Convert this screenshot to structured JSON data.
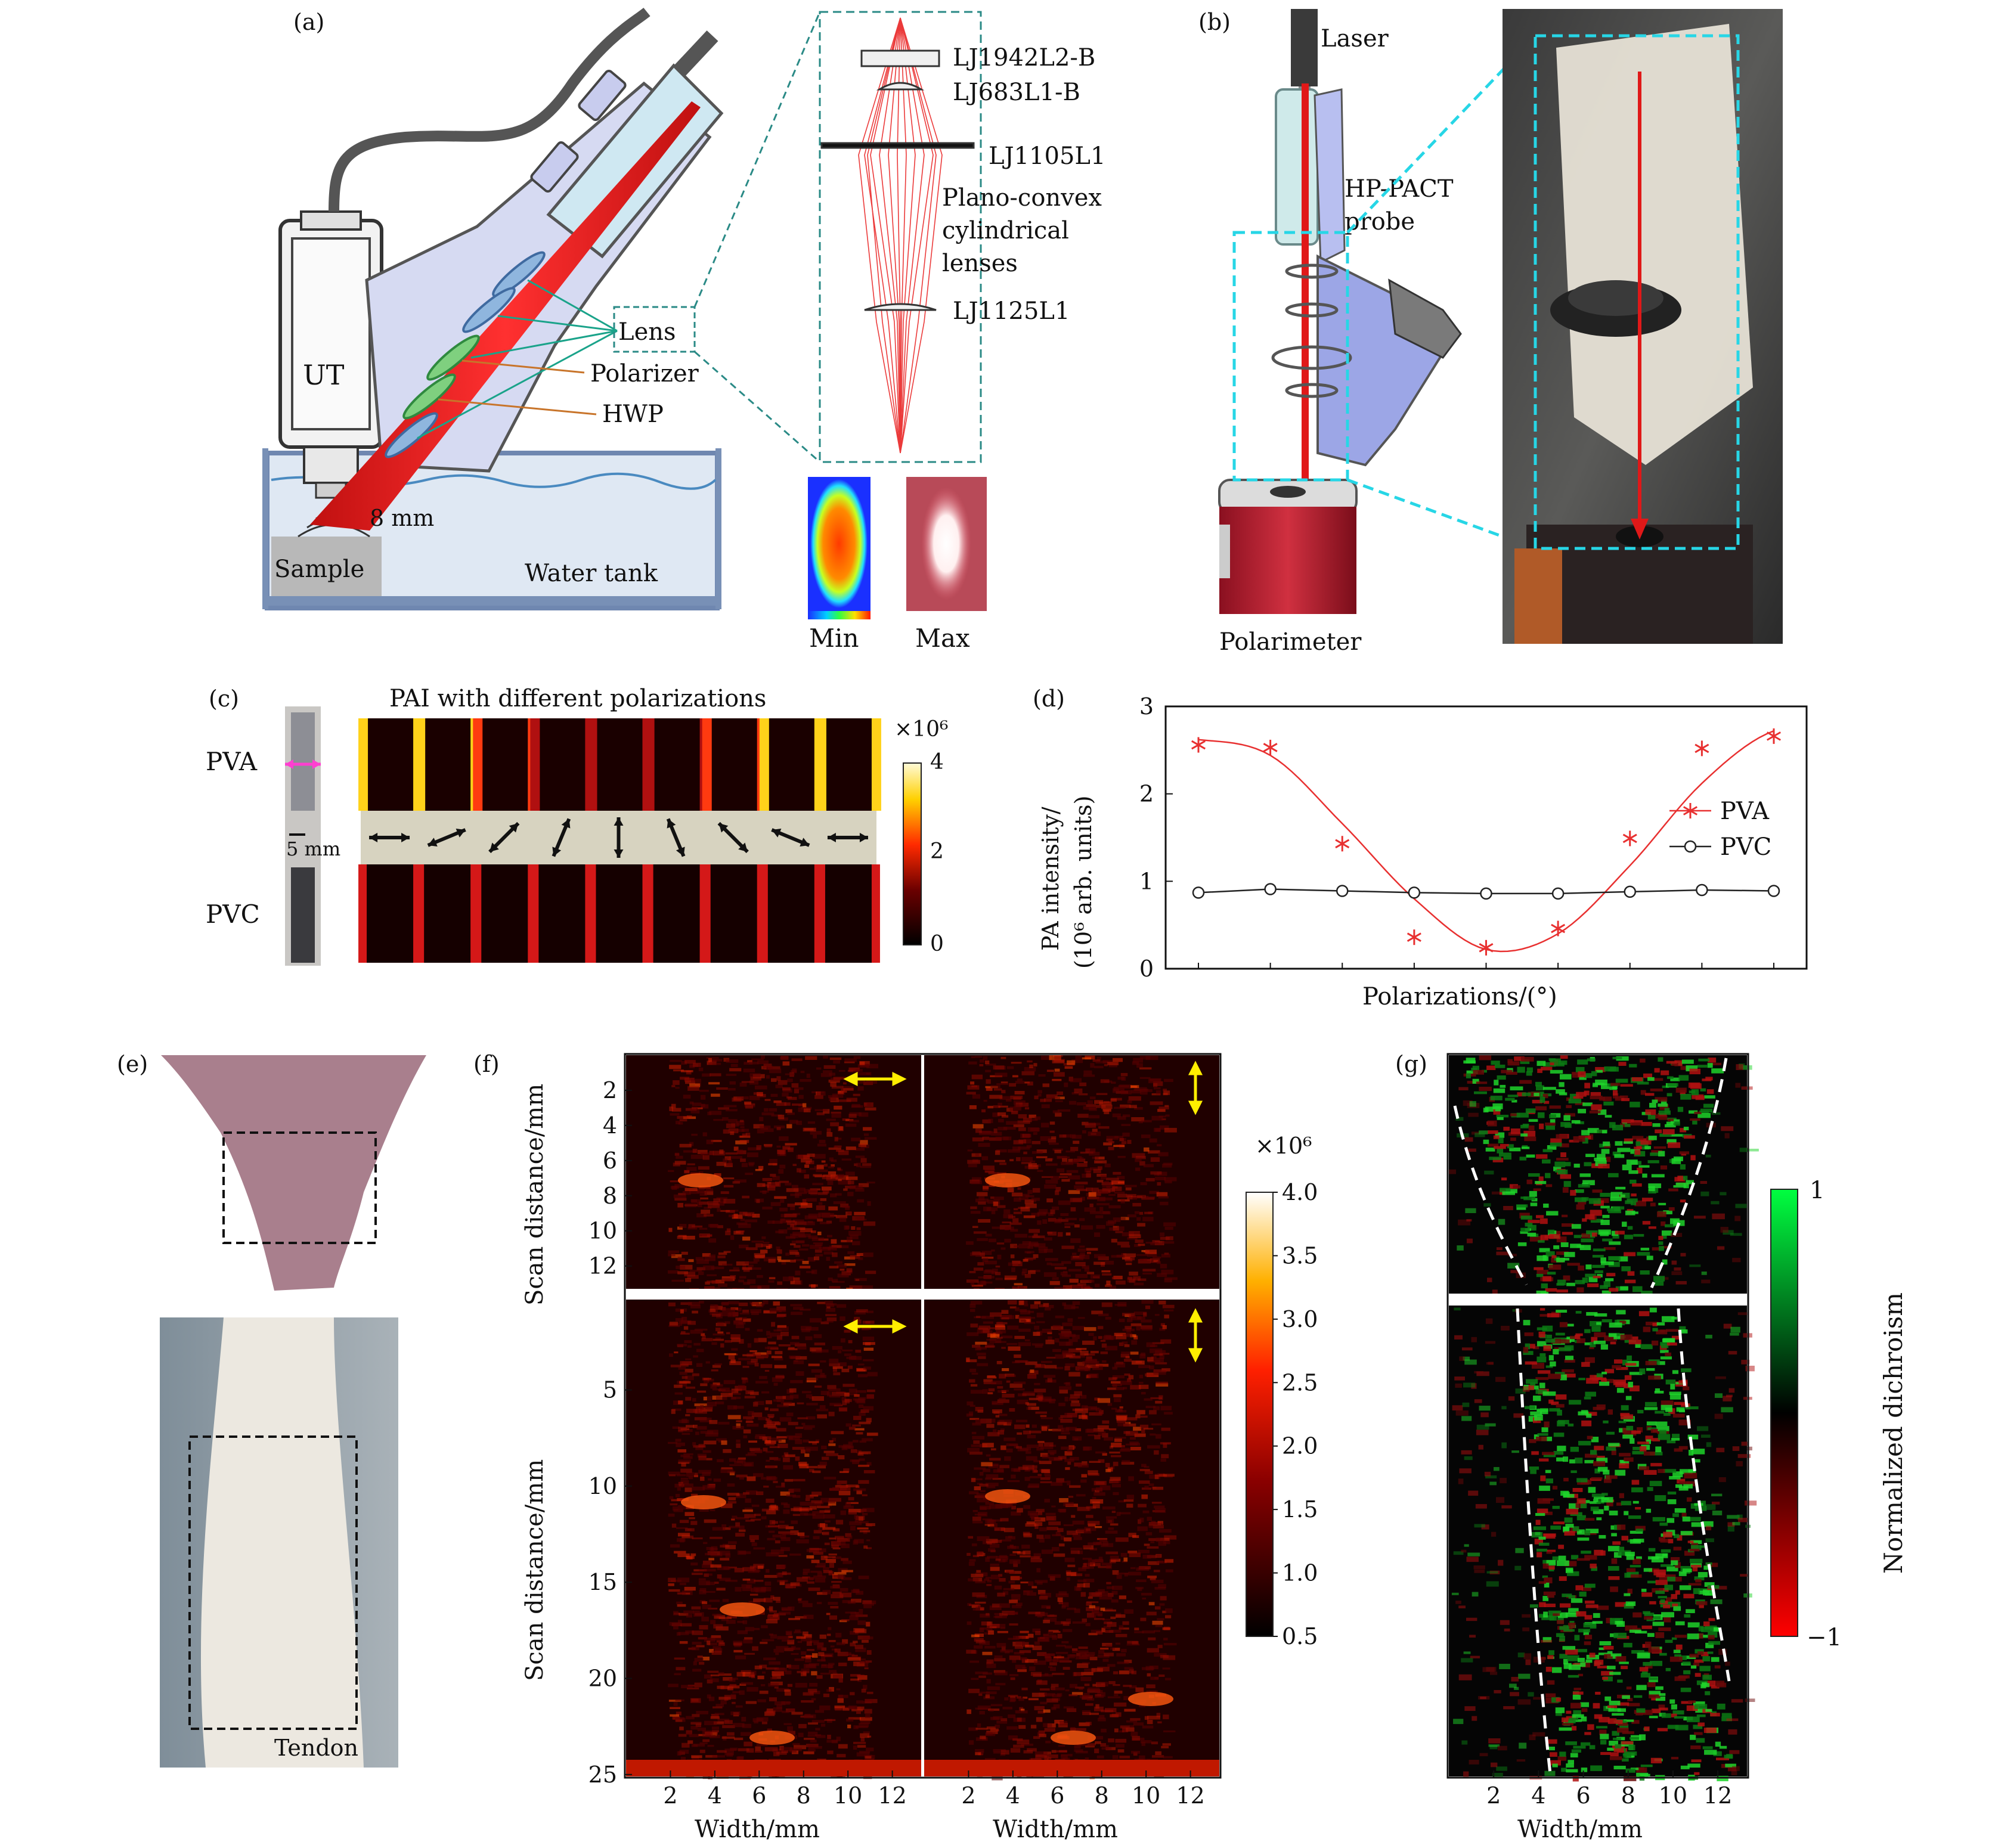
{
  "panel_letters": [
    "(a)",
    "(b)",
    "(c)",
    "(d)",
    "(e)",
    "(f)",
    "(g)"
  ],
  "panel_a": {
    "lens_labels": [
      "LJ1942L2-B",
      "LJ683L1-B",
      "LJ1105L1",
      "Plano-convex",
      "cylindrical",
      "lenses",
      "LJ1125L1"
    ],
    "component_labels": {
      "ut": "UT",
      "lens": "Lens",
      "polarizer": "Polarizer",
      "hwp": "HWP",
      "distance": "8 mm",
      "sample": "Sample",
      "water_tank": "Water tank"
    },
    "beam_profile": {
      "min_label": "Min",
      "max_label": "Max"
    }
  },
  "panel_b": {
    "laser": "Laser",
    "probe_line1": "HP-PACT",
    "probe_line2": "probe",
    "polarimeter": "Polarimeter"
  },
  "panel_c": {
    "title": "PAI with different polarizations",
    "sample_labels": [
      "PVA",
      "PVC"
    ],
    "scale_bar": "5 mm",
    "colorbar": {
      "multiplier": "×10⁶",
      "ticks": [
        "4",
        "2",
        "0"
      ]
    },
    "polarization_angles_deg": [
      0,
      22.5,
      45,
      67.5,
      90,
      112.5,
      135,
      157.5,
      180
    ]
  },
  "panel_d": {
    "chart_data": {
      "type": "line",
      "title": "",
      "xlabel": "Polarizations/(°)",
      "ylabel_line1": "PA intensity/",
      "ylabel_line2": "(10⁶ arb. units)",
      "ylim": [
        0,
        3
      ],
      "yticks": [
        "0",
        "1",
        "2",
        "3"
      ],
      "x": [
        1,
        2,
        3,
        4,
        5,
        6,
        7,
        8,
        9
      ],
      "series": [
        {
          "name": "PVA",
          "marker": "asterisk",
          "color": "#e83030",
          "values": [
            2.56,
            2.53,
            1.43,
            0.36,
            0.24,
            0.46,
            1.49,
            2.52,
            2.66
          ],
          "fit": [
            2.62,
            2.44,
            1.66,
            0.8,
            0.22,
            0.4,
            1.18,
            2.12,
            2.72
          ]
        },
        {
          "name": "PVC",
          "marker": "circle",
          "color": "#222222",
          "values": [
            0.87,
            0.91,
            0.89,
            0.87,
            0.86,
            0.86,
            0.88,
            0.9,
            0.89
          ]
        }
      ],
      "legend_position": "right"
    }
  },
  "panel_e": {
    "tendon_label": "Tendon"
  },
  "panel_f": {
    "ylabel": "Scan distance/mm",
    "xlabel": "Width/mm",
    "top_yticks": [
      "2",
      "4",
      "6",
      "8",
      "10",
      "12"
    ],
    "bottom_yticks": [
      "5",
      "10",
      "15",
      "20",
      "25"
    ],
    "xticks": [
      "2",
      "4",
      "6",
      "8",
      "10",
      "12"
    ],
    "colorbar": {
      "multiplier": "×10⁶",
      "ticks": [
        "4.0",
        "3.5",
        "3.0",
        "2.5",
        "2.0",
        "1.5",
        "1.0",
        "0.5"
      ]
    }
  },
  "panel_g": {
    "xlabel": "Width/mm",
    "xticks": [
      "2",
      "4",
      "6",
      "8",
      "10",
      "12"
    ],
    "colorbar": {
      "label": "Normalized dichroism",
      "top": "1",
      "bottom": "−1"
    }
  },
  "colors": {
    "laser_red": "#e02020",
    "accent_cyan": "#27d6e6",
    "teal_dash": "#2a8a86",
    "green_arrow": "#1aa38a",
    "orange_arrow": "#c8742a"
  }
}
